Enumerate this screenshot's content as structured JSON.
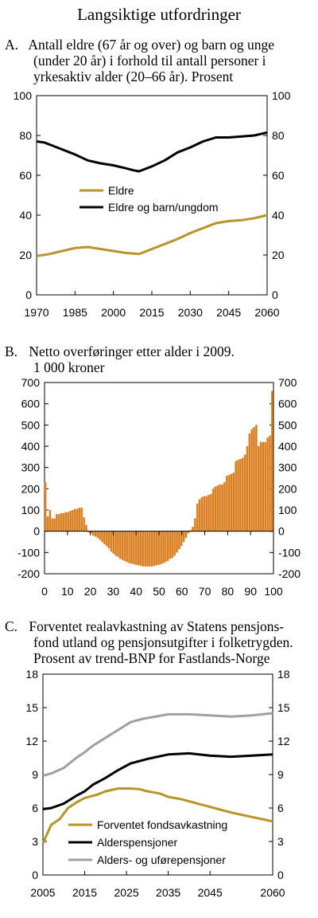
{
  "title": "Langsiktige utfordringer",
  "panels": {
    "a": {
      "label": "A.",
      "title_lines": [
        "Antall eldre (67 år og over) og barn og unge",
        "(under 20 år) i forhold til antall personer i",
        "yrkesaktiv alder (20–66 år). Prosent"
      ]
    },
    "b": {
      "label": "B.",
      "title_lines": [
        "Netto overføringer etter alder i 2009.",
        "1 000 kroner"
      ]
    },
    "c": {
      "label": "C.",
      "title_lines": [
        "Forventet realavkastning av Statens pensjons-",
        "fond utland og pensjonsutgifter i folketrygden.",
        "Prosent av trend-BNP for Fastlands-Norge"
      ]
    }
  },
  "colors": {
    "gold": "#b8942a",
    "black": "#000000",
    "gray": "#a0a0a0",
    "bar": "#e07b20",
    "bar_edge": "#c9a24a"
  },
  "chart_data": [
    {
      "type": "line",
      "x_ticks": [
        "1970",
        "1985",
        "2000",
        "2015",
        "2030",
        "2045",
        "2060"
      ],
      "xlim": [
        1970,
        2060
      ],
      "ylim": [
        0,
        100
      ],
      "y_ticks": [
        "0",
        "20",
        "40",
        "60",
        "80",
        "100"
      ],
      "legend_position": "middle-left",
      "series": [
        {
          "name": "Eldre",
          "color": "gold",
          "points": [
            [
              1970,
              19.5
            ],
            [
              1975,
              20.5
            ],
            [
              1980,
              22
            ],
            [
              1985,
              23.5
            ],
            [
              1990,
              24
            ],
            [
              1995,
              23
            ],
            [
              2000,
              22
            ],
            [
              2005,
              21
            ],
            [
              2010,
              20.5
            ],
            [
              2015,
              23
            ],
            [
              2020,
              25.5
            ],
            [
              2025,
              28
            ],
            [
              2030,
              31
            ],
            [
              2035,
              33.5
            ],
            [
              2040,
              36
            ],
            [
              2045,
              37
            ],
            [
              2050,
              37.5
            ],
            [
              2055,
              38.5
            ],
            [
              2060,
              40
            ]
          ]
        },
        {
          "name": "Eldre og barn/ungdom",
          "color": "black",
          "points": [
            [
              1970,
              77
            ],
            [
              1973,
              76.5
            ],
            [
              1976,
              75
            ],
            [
              1980,
              73
            ],
            [
              1985,
              70.5
            ],
            [
              1990,
              67.5
            ],
            [
              1995,
              66
            ],
            [
              2000,
              65
            ],
            [
              2005,
              63.5
            ],
            [
              2008,
              62.5
            ],
            [
              2010,
              62
            ],
            [
              2012,
              63
            ],
            [
              2015,
              64.5
            ],
            [
              2020,
              67.5
            ],
            [
              2025,
              71.5
            ],
            [
              2030,
              74
            ],
            [
              2035,
              77
            ],
            [
              2040,
              79
            ],
            [
              2045,
              79
            ],
            [
              2050,
              79.5
            ],
            [
              2055,
              80
            ],
            [
              2060,
              81.5
            ]
          ]
        }
      ]
    },
    {
      "type": "bar",
      "x_ticks": [
        "0",
        "10",
        "20",
        "30",
        "40",
        "50",
        "60",
        "70",
        "80",
        "90",
        "100"
      ],
      "xlim": [
        0,
        100
      ],
      "ylim": [
        -200,
        700
      ],
      "y_ticks": [
        "-200",
        "-100",
        "0",
        "100",
        "200",
        "300",
        "400",
        "500",
        "600",
        "700"
      ],
      "values": [
        230,
        70,
        100,
        60,
        60,
        80,
        80,
        85,
        85,
        90,
        90,
        95,
        100,
        105,
        105,
        110,
        110,
        65,
        30,
        -5,
        -10,
        -20,
        -25,
        -30,
        -40,
        -50,
        -60,
        -70,
        -80,
        -95,
        -105,
        -115,
        -120,
        -130,
        -135,
        -140,
        -145,
        -150,
        -152,
        -155,
        -158,
        -160,
        -162,
        -165,
        -165,
        -165,
        -165,
        -165,
        -163,
        -160,
        -158,
        -155,
        -150,
        -145,
        -140,
        -130,
        -125,
        -115,
        -100,
        -85,
        -70,
        -50,
        -30,
        -10,
        5,
        20,
        60,
        130,
        150,
        160,
        165,
        165,
        170,
        175,
        200,
        210,
        215,
        220,
        220,
        230,
        260,
        265,
        270,
        275,
        330,
        335,
        340,
        345,
        360,
        400,
        460,
        480,
        490,
        500,
        400,
        420,
        420,
        420,
        440,
        450,
        660
      ]
    },
    {
      "type": "line",
      "x_ticks": [
        "2005",
        "2015",
        "2025",
        "2035",
        "2045",
        "2060"
      ],
      "xlim": [
        2005,
        2060
      ],
      "ylim": [
        0,
        18
      ],
      "y_ticks": [
        "0",
        "3",
        "6",
        "9",
        "12",
        "15",
        "18"
      ],
      "legend_position": "bottom-center",
      "series": [
        {
          "name": "Forventet fondsavkastning",
          "color": "gold",
          "points": [
            [
              2005,
              2.8
            ],
            [
              2006,
              3.7
            ],
            [
              2007,
              4.5
            ],
            [
              2009,
              5
            ],
            [
              2011,
              6
            ],
            [
              2013,
              6.5
            ],
            [
              2015,
              6.9
            ],
            [
              2018,
              7.2
            ],
            [
              2020,
              7.5
            ],
            [
              2023,
              7.75
            ],
            [
              2026,
              7.75
            ],
            [
              2028,
              7.7
            ],
            [
              2030,
              7.5
            ],
            [
              2033,
              7.3
            ],
            [
              2035,
              7.0
            ],
            [
              2038,
              6.8
            ],
            [
              2040,
              6.6
            ],
            [
              2045,
              6.1
            ],
            [
              2050,
              5.6
            ],
            [
              2055,
              5.2
            ],
            [
              2060,
              4.8
            ]
          ]
        },
        {
          "name": "Alderspensjoner",
          "color": "black",
          "points": [
            [
              2005,
              5.9
            ],
            [
              2007,
              6.0
            ],
            [
              2010,
              6.4
            ],
            [
              2013,
              7.1
            ],
            [
              2015,
              7.5
            ],
            [
              2017,
              8.1
            ],
            [
              2020,
              8.7
            ],
            [
              2023,
              9.4
            ],
            [
              2026,
              10
            ],
            [
              2030,
              10.4
            ],
            [
              2035,
              10.8
            ],
            [
              2040,
              10.9
            ],
            [
              2045,
              10.7
            ],
            [
              2050,
              10.6
            ],
            [
              2055,
              10.7
            ],
            [
              2060,
              10.8
            ]
          ]
        },
        {
          "name": "Alders- og uførepensjoner",
          "color": "gray",
          "points": [
            [
              2005,
              8.9
            ],
            [
              2007,
              9.1
            ],
            [
              2010,
              9.6
            ],
            [
              2013,
              10.5
            ],
            [
              2015,
              11
            ],
            [
              2017,
              11.6
            ],
            [
              2020,
              12.3
            ],
            [
              2023,
              13
            ],
            [
              2026,
              13.7
            ],
            [
              2029,
              14
            ],
            [
              2035,
              14.4
            ],
            [
              2040,
              14.4
            ],
            [
              2045,
              14.3
            ],
            [
              2050,
              14.2
            ],
            [
              2055,
              14.3
            ],
            [
              2060,
              14.5
            ]
          ]
        }
      ]
    }
  ]
}
